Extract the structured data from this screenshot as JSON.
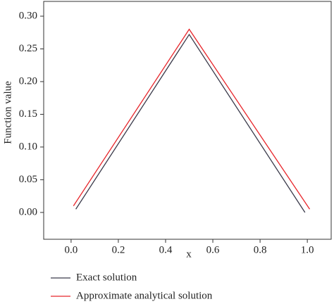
{
  "chart_data": {
    "type": "line",
    "x_label": "x",
    "y_label": "Function value",
    "series": [
      {
        "name": "Exact solution",
        "color": "#3a3a4a",
        "x": [
          0.02,
          0.5,
          0.99
        ],
        "values": [
          0.005,
          0.272,
          0.0
        ]
      },
      {
        "name": "Approximate analytical solution",
        "color": "#e8262b",
        "x": [
          0.01,
          0.5,
          1.01
        ],
        "values": [
          0.01,
          0.28,
          0.005
        ]
      }
    ],
    "xlim": [
      -0.116,
      1.101
    ],
    "ylim": [
      -0.041,
      0.3226
    ],
    "xticks": [
      {
        "value": 0,
        "label": "0.0"
      },
      0.2,
      0.4,
      0.6,
      0.8,
      {
        "value": 1,
        "label": "1.0"
      }
    ],
    "yticks": [
      {
        "value": 0,
        "label": "0.00"
      },
      {
        "value": 0.05,
        "label": "0.05"
      },
      {
        "value": 0.1,
        "label": "0.10"
      },
      {
        "value": 0.15,
        "label": "0.15"
      },
      {
        "value": 0.2,
        "label": "0.20"
      },
      {
        "value": 0.25,
        "label": "0.25"
      },
      {
        "value": 0.3,
        "label": "0.30"
      }
    ],
    "legend": "bottom-left"
  }
}
